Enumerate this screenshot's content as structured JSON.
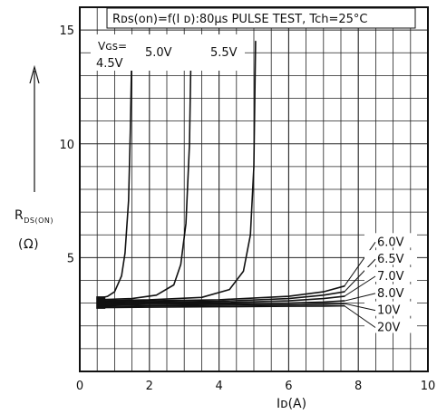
{
  "chart_data": {
    "type": "line",
    "title": "R<sub>DS</sub>(on)=f(I D):80μs PULSE TEST, Tch=25°C",
    "title_text": "Rᴅs(on)=f(I ᴅ):80μs PULSE TEST, Tch=25°C",
    "xlabel": "Iᴅ(A)",
    "ylabel_main": "R",
    "ylabel_sub": "DS(ON)",
    "yunit": "(Ω)",
    "xlim": [
      0,
      10
    ],
    "ylim": [
      0,
      16
    ],
    "x_ticks": [
      "0",
      "2",
      "4",
      "6",
      "8",
      "10"
    ],
    "y_ticks": [
      "5",
      "10",
      "15"
    ],
    "grid": true,
    "left_labels": {
      "vgs_prefix": "Vɢs=",
      "v45": "4.5V",
      "v50": "5.0V",
      "v55": "5.5V"
    },
    "series": [
      {
        "name": "4.5V",
        "x": [
          0.5,
          0.8,
          1.0,
          1.2,
          1.3,
          1.4,
          1.45,
          1.5
        ],
        "y": [
          3.2,
          3.3,
          3.5,
          4.2,
          5.2,
          7.5,
          10.5,
          14.5
        ]
      },
      {
        "name": "5.0V",
        "x": [
          0.5,
          1.5,
          2.2,
          2.7,
          2.9,
          3.05,
          3.15,
          3.2
        ],
        "y": [
          3.15,
          3.2,
          3.35,
          3.8,
          4.7,
          6.5,
          10.0,
          14.5
        ]
      },
      {
        "name": "5.5V",
        "x": [
          0.5,
          2.0,
          3.5,
          4.3,
          4.7,
          4.9,
          5.0,
          5.05
        ],
        "y": [
          3.1,
          3.15,
          3.25,
          3.6,
          4.4,
          6.0,
          9.0,
          14.5
        ]
      },
      {
        "name": "6.0V",
        "x": [
          0.5,
          2,
          4,
          6,
          7,
          7.6
        ],
        "y": [
          3.05,
          3.1,
          3.15,
          3.3,
          3.5,
          3.75
        ]
      },
      {
        "name": "6.5V",
        "x": [
          0.5,
          2,
          4,
          6,
          7,
          7.6
        ],
        "y": [
          3.0,
          3.05,
          3.08,
          3.2,
          3.35,
          3.5
        ]
      },
      {
        "name": "7.0V",
        "x": [
          0.5,
          2,
          4,
          6,
          7,
          7.6
        ],
        "y": [
          2.95,
          3.0,
          3.02,
          3.1,
          3.2,
          3.3
        ]
      },
      {
        "name": "8.0V",
        "x": [
          0.5,
          2,
          4,
          6,
          7,
          7.6
        ],
        "y": [
          2.9,
          2.95,
          2.96,
          3.0,
          3.05,
          3.1
        ]
      },
      {
        "name": "10V",
        "x": [
          0.5,
          2,
          4,
          6,
          7,
          7.6
        ],
        "y": [
          2.85,
          2.88,
          2.9,
          2.93,
          2.95,
          2.98
        ]
      },
      {
        "name": "20V",
        "x": [
          0.5,
          2,
          4,
          6,
          7,
          7.6
        ],
        "y": [
          2.8,
          2.82,
          2.84,
          2.86,
          2.87,
          2.88
        ]
      }
    ],
    "right_labels": [
      {
        "text": "6.0V",
        "series": "6.0V",
        "y": 5.6
      },
      {
        "text": "6.5V",
        "series": "6.5V",
        "y": 4.85
      },
      {
        "text": "7.0V",
        "series": "7.0V",
        "y": 4.1
      },
      {
        "text": "8.0V",
        "series": "8.0V",
        "y": 3.35
      },
      {
        "text": "10V",
        "series": "10V",
        "y": 2.6
      },
      {
        "text": "20V",
        "series": "20V",
        "y": 1.85
      }
    ]
  }
}
